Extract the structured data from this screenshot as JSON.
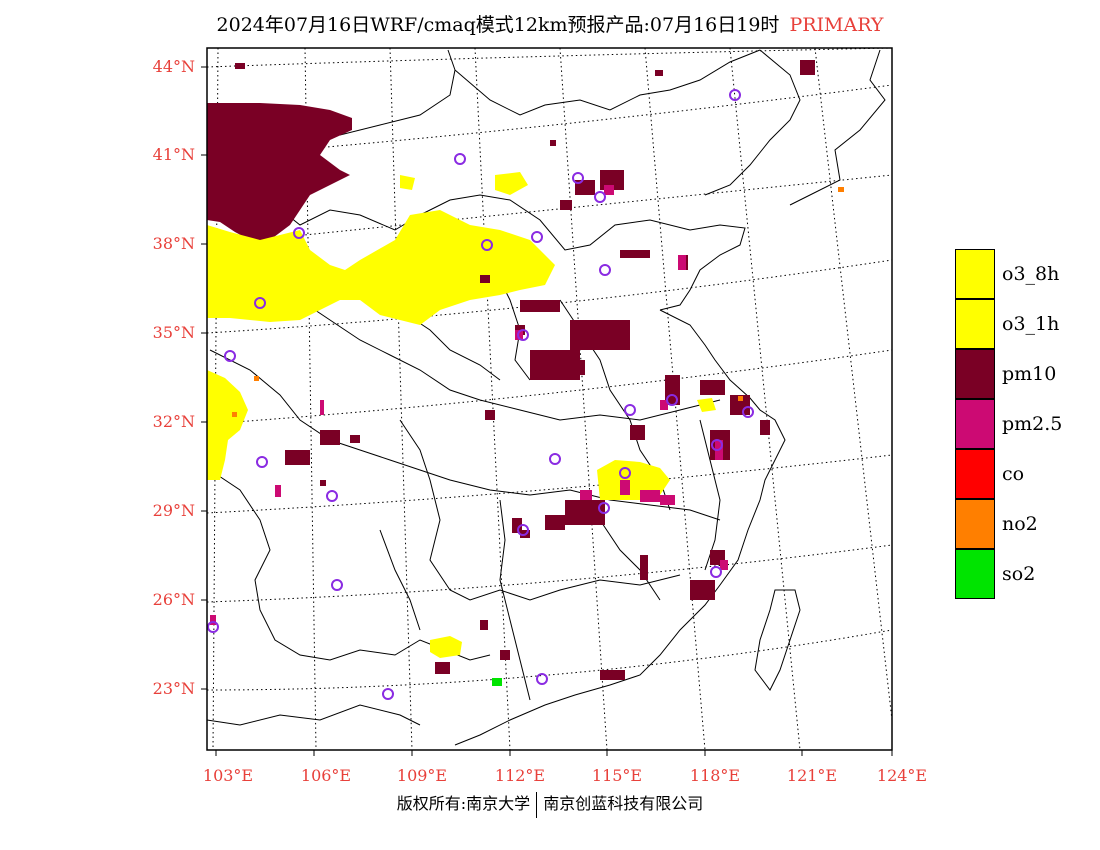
{
  "title": {
    "main": "2024年07月16日WRF/cmaq模式12km预报产品:07月16日19时",
    "accent": "PRIMARY"
  },
  "axes": {
    "lat_labels": [
      "44°N",
      "41°N",
      "38°N",
      "35°N",
      "32°N",
      "29°N",
      "26°N",
      "23°N"
    ],
    "lon_labels": [
      "103°E",
      "106°E",
      "109°E",
      "112°E",
      "115°E",
      "118°E",
      "121°E",
      "124°E"
    ]
  },
  "legend": {
    "items": [
      {
        "label": "o3_8h",
        "color": "#ffff00"
      },
      {
        "label": "o3_1h",
        "color": "#ffff00"
      },
      {
        "label": "pm10",
        "color": "#7a0025"
      },
      {
        "label": "pm2.5",
        "color": "#cc0a73"
      },
      {
        "label": "co",
        "color": "#ff0000"
      },
      {
        "label": "no2",
        "color": "#ff7f00"
      },
      {
        "label": "so2",
        "color": "#00e400"
      }
    ]
  },
  "footer": {
    "left": "版权所有:南京大学",
    "right": "南京创蓝科技有限公司"
  },
  "colors": {
    "o3": "#ffff00",
    "pm10": "#7a0025",
    "pm25": "#cc0a73",
    "no2": "#ff7f00",
    "so2": "#00e400",
    "station": "#8a2be2",
    "tick": "#e8403a"
  },
  "map_layers": [
    "province-boundaries",
    "graticule",
    "pollutant-cells",
    "monitoring-stations"
  ]
}
